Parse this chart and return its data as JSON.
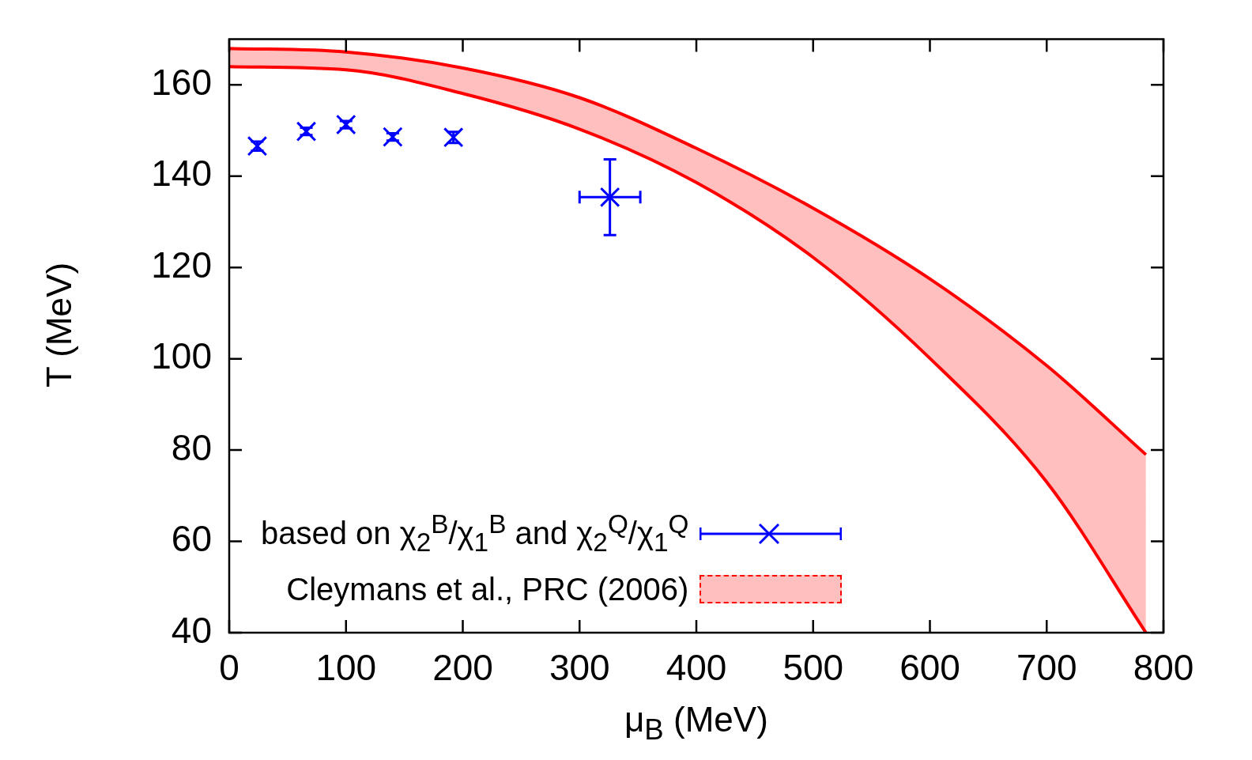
{
  "chart_data": {
    "type": "scatter",
    "xlabel": "μ$_{B}$ (MeV)",
    "ylabel": "T (MeV)",
    "xlim": [
      0,
      800
    ],
    "xticks": [
      0,
      100,
      200,
      300,
      400,
      500,
      600,
      700,
      800
    ],
    "ylim": [
      40,
      170
    ],
    "yticks": [
      40,
      60,
      80,
      100,
      120,
      140,
      160
    ],
    "grid": false,
    "legend": "bottom left",
    "series": [
      {
        "name": "based on χ$_{2}$$^{B}$/χ$_{1}$$^{B}$ and χ$_{2}$$^{Q}$/χ$_{1}$$^{Q}$",
        "color": "#0000ff",
        "marker": "cross",
        "x": [
          24,
          66,
          100,
          140,
          192,
          326
        ],
        "values": [
          146.6,
          149.8,
          151.3,
          148.6,
          148.5,
          135.4
        ],
        "errors": [
          1,
          0.8,
          0.8,
          0.8,
          1.2,
          8.3
        ],
        "xerrors": [
          null,
          null,
          null,
          null,
          null,
          26
        ]
      },
      {
        "name": "Cleymans et al., PRC (2006)",
        "type": "area",
        "color": "#ff0000",
        "x": [
          0,
          100,
          200,
          300,
          400,
          500,
          600,
          700,
          785
        ],
        "values": [
          168,
          167.2,
          163.7,
          157.2,
          146.1,
          133,
          117.5,
          98.5,
          79
        ]
      },
      {
        "type": "line",
        "color": "#ff0000",
        "x": [
          0,
          100,
          200,
          300,
          400,
          500,
          600,
          700,
          785
        ],
        "values": [
          164,
          163.3,
          158.1,
          150.3,
          138.6,
          122.2,
          100.1,
          73,
          40
        ]
      }
    ]
  }
}
